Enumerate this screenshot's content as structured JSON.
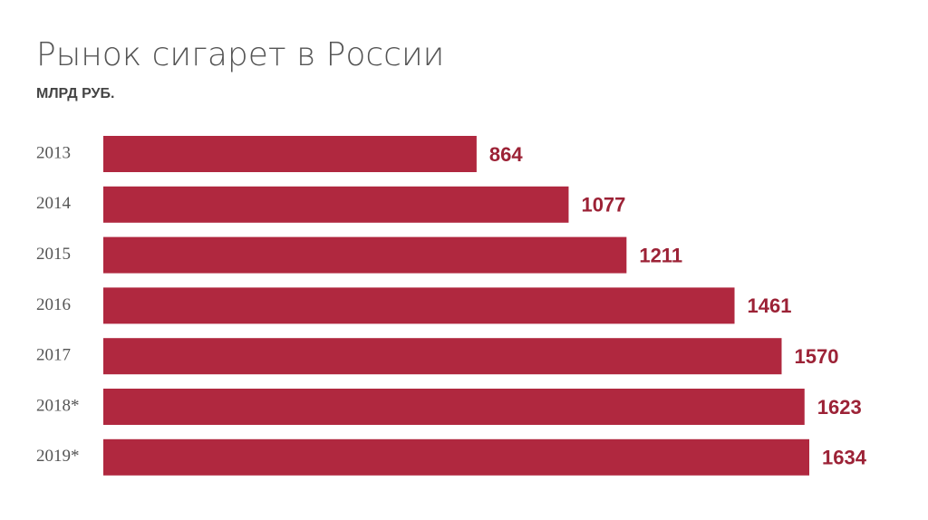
{
  "chart_data": {
    "type": "bar",
    "orientation": "horizontal",
    "title": "Рынок сигарет в России",
    "subtitle": "МЛРД РУБ.",
    "categories": [
      "2013",
      "2014",
      "2015",
      "2016",
      "2017",
      "2018*",
      "2019*"
    ],
    "values": [
      864,
      1077,
      1211,
      1461,
      1570,
      1623,
      1634
    ],
    "color": "#b0283f"
  }
}
